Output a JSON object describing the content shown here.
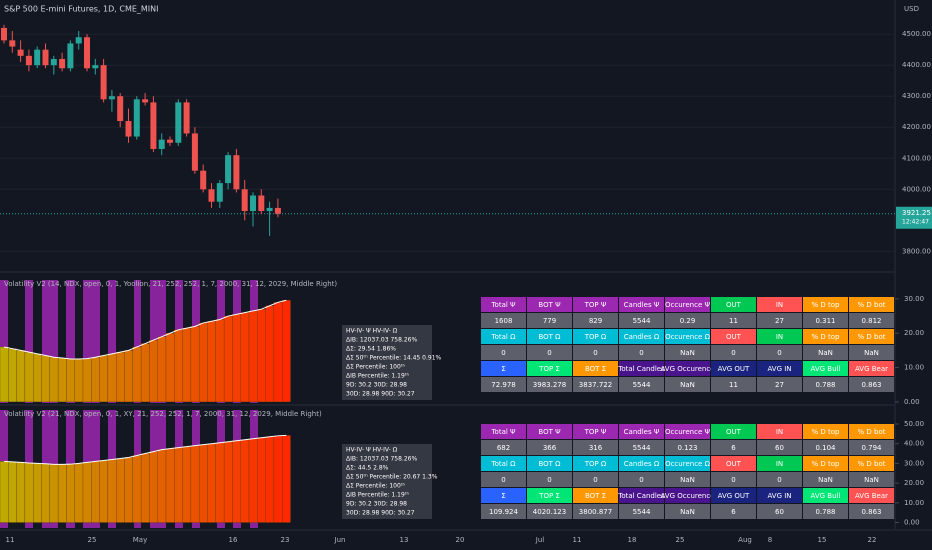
{
  "header": {
    "title": "S&P 500 E-mini Futures, 1D, CME_MINI",
    "currency": "USD"
  },
  "price_chart": {
    "type": "candlestick",
    "ylim": [
      3740,
      4610
    ],
    "yticks": [
      {
        "value": 4500,
        "label": "4500.00"
      },
      {
        "value": 4400,
        "label": "4400.00"
      },
      {
        "value": 4300,
        "label": "4300.00"
      },
      {
        "value": 4200,
        "label": "4200.00"
      },
      {
        "value": 4100,
        "label": "4100.00"
      },
      {
        "value": 4000,
        "label": "4000.00"
      },
      {
        "value": 3800,
        "label": "3800.00"
      }
    ],
    "last_price": {
      "value": 3921.25,
      "label": "3921.25",
      "time": "12:42:47"
    },
    "candles": [
      {
        "open": 4520,
        "high": 4530,
        "low": 4470,
        "close": 4480
      },
      {
        "open": 4480,
        "high": 4510,
        "low": 4440,
        "close": 4460
      },
      {
        "open": 4450,
        "high": 4480,
        "low": 4410,
        "close": 4430
      },
      {
        "open": 4430,
        "high": 4450,
        "low": 4380,
        "close": 4400
      },
      {
        "open": 4400,
        "high": 4460,
        "low": 4390,
        "close": 4450
      },
      {
        "open": 4450,
        "high": 4470,
        "low": 4390,
        "close": 4400
      },
      {
        "open": 4400,
        "high": 4430,
        "low": 4370,
        "close": 4420
      },
      {
        "open": 4420,
        "high": 4440,
        "low": 4380,
        "close": 4390
      },
      {
        "open": 4390,
        "high": 4480,
        "low": 4380,
        "close": 4470
      },
      {
        "open": 4470,
        "high": 4510,
        "low": 4450,
        "close": 4490
      },
      {
        "open": 4490,
        "high": 4500,
        "low": 4380,
        "close": 4390
      },
      {
        "open": 4390,
        "high": 4420,
        "low": 4370,
        "close": 4400
      },
      {
        "open": 4400,
        "high": 4420,
        "low": 4280,
        "close": 4290
      },
      {
        "open": 4290,
        "high": 4320,
        "low": 4250,
        "close": 4300
      },
      {
        "open": 4300,
        "high": 4310,
        "low": 4200,
        "close": 4220
      },
      {
        "open": 4220,
        "high": 4260,
        "low": 4150,
        "close": 4170
      },
      {
        "open": 4170,
        "high": 4300,
        "low": 4160,
        "close": 4290
      },
      {
        "open": 4290,
        "high": 4310,
        "low": 4270,
        "close": 4280
      },
      {
        "open": 4280,
        "high": 4300,
        "low": 4120,
        "close": 4130
      },
      {
        "open": 4130,
        "high": 4180,
        "low": 4110,
        "close": 4160
      },
      {
        "open": 4160,
        "high": 4170,
        "low": 4140,
        "close": 4150
      },
      {
        "open": 4150,
        "high": 4290,
        "low": 4140,
        "close": 4280
      },
      {
        "open": 4280,
        "high": 4290,
        "low": 4170,
        "close": 4180
      },
      {
        "open": 4180,
        "high": 4200,
        "low": 4050,
        "close": 4060
      },
      {
        "open": 4060,
        "high": 4080,
        "low": 3990,
        "close": 4000
      },
      {
        "open": 4000,
        "high": 4020,
        "low": 3940,
        "close": 3960
      },
      {
        "open": 3960,
        "high": 4030,
        "low": 3940,
        "close": 4020
      },
      {
        "open": 4020,
        "high": 4120,
        "low": 4000,
        "close": 4110
      },
      {
        "open": 4110,
        "high": 4130,
        "low": 3990,
        "close": 4000
      },
      {
        "open": 4000,
        "high": 4030,
        "low": 3900,
        "close": 3930
      },
      {
        "open": 3930,
        "high": 3990,
        "low": 3880,
        "close": 3980
      },
      {
        "open": 3980,
        "high": 4000,
        "low": 3920,
        "close": 3930
      },
      {
        "open": 3930,
        "high": 3960,
        "low": 3850,
        "close": 3940
      },
      {
        "open": 3940,
        "high": 3970,
        "low": 3910,
        "close": 3921.25
      }
    ]
  },
  "indicators": [
    {
      "title": "Volatility V2 (14, NDX, open, 0, 1, Yoolion, 21, 252, 252, 1, 7, 2000, 31, 12, 2029, Middle Right)",
      "ylim": [
        -0.9,
        35.5
      ],
      "yticks": [
        {
          "value": 30,
          "label": "30.00"
        },
        {
          "value": 20,
          "label": "20.00"
        },
        {
          "value": 10,
          "label": "10.00"
        },
        {
          "value": 0,
          "label": "0.00"
        }
      ],
      "values": [
        16,
        15.5,
        15,
        14.5,
        14,
        13.5,
        13,
        12.8,
        12.5,
        12.5,
        12.6,
        13,
        13.5,
        14,
        14.5,
        15,
        16,
        17,
        18,
        19,
        20,
        21,
        21.5,
        22,
        23,
        23.5,
        24,
        25,
        25.5,
        26,
        26.5,
        27,
        28,
        29,
        29.6
      ],
      "tooltip": [
        "HV-IV- Ψ  HV-IV- Ω",
        "ΔIB: 12037.03  758.26%",
        "ΔΣ: 29.54  1.86%",
        "ΔΣ 50ᵗʰ Percentile: 14.45  0.91%",
        "ΔΣ Percentile: 100ᵗʰ",
        "ΔIB Percentile: 1.19ᵗʰ",
        "9D: 30.2  30D: 28.98",
        "30D: 28.98  90D: 30.27"
      ],
      "table": [
        [
          "Total Ψ",
          "BOT Ψ",
          "TOP Ψ",
          "Candles Ψ",
          "Occurence Ψ",
          "OUT",
          "IN",
          "% D top",
          "% D bot"
        ],
        [
          "1608",
          "779",
          "829",
          "5544",
          "0.29",
          "11",
          "27",
          "0.311",
          "0.812"
        ],
        [
          "Total Ω",
          "BOT Ω",
          "TOP Ω",
          "Candles Ω",
          "Occurence Ω",
          "OUT",
          "IN",
          "% D top",
          "% D bot"
        ],
        [
          "0",
          "0",
          "0",
          "0",
          "NaN",
          "0",
          "0",
          "NaN",
          "NaN"
        ],
        [
          "Σ",
          "TOP Σ",
          "BOT Σ",
          "Total Candles",
          "AVG Occurence",
          "AVG OUT",
          "AVG IN",
          "AVG Bull",
          "AVG Bear"
        ],
        [
          "72.978",
          "3983.278",
          "3837.722",
          "5544",
          "NaN",
          "11",
          "27",
          "0.788",
          "0.863"
        ]
      ]
    },
    {
      "title": "Volatility V2 (21, NDX, open, 0, 1, XY, 21, 252, 252, 1, 7, 2000, 31, 12, 2029, Middle Right)",
      "ylim": [
        -3.8,
        57.1
      ],
      "yticks": [
        {
          "value": 50,
          "label": "50.00"
        },
        {
          "value": 40,
          "label": "40.00"
        },
        {
          "value": 30,
          "label": "30.00"
        },
        {
          "value": 20,
          "label": "20.00"
        },
        {
          "value": 10,
          "label": "10.00"
        },
        {
          "value": 0,
          "label": "0.00"
        }
      ],
      "values": [
        31,
        30.8,
        30.5,
        30.2,
        30,
        29.8,
        29.5,
        29.5,
        29.6,
        30,
        30.5,
        31,
        31.5,
        32,
        32.5,
        33,
        34,
        35,
        36,
        37,
        37.5,
        38,
        38.5,
        39,
        39.5,
        40,
        40.5,
        41,
        41.5,
        42,
        42.5,
        43,
        43.5,
        44,
        44.2
      ],
      "tooltip": [
        "HV-IV- Ψ  HV-IV- Ω",
        "ΔIB: 12037.03  758.26%",
        "ΔΣ: 44.5  2.8%",
        "ΔΣ 50ᵗʰ Percentile: 20.67  1.3%",
        "ΔΣ Percentile: 100ᵗʰ",
        "ΔIB Percentile: 1.19ᵗʰ",
        "9D: 30.2  30D: 28.98",
        "30D: 28.98  90D: 30.27"
      ],
      "table": [
        [
          "Total Ψ",
          "BOT Ψ",
          "TOP Ψ",
          "Candles Ψ",
          "Occurence Ψ",
          "OUT",
          "IN",
          "% D top",
          "% D bot"
        ],
        [
          "682",
          "366",
          "316",
          "5544",
          "0.123",
          "6",
          "60",
          "0.104",
          "0.794"
        ],
        [
          "Total Ω",
          "BOT Ω",
          "TOP Ω",
          "Candles Ω",
          "Occurence Ω",
          "OUT",
          "IN",
          "% D top",
          "% D bot"
        ],
        [
          "0",
          "0",
          "0",
          "0",
          "NaN",
          "0",
          "0",
          "NaN",
          "NaN"
        ],
        [
          "Σ",
          "TOP Σ",
          "BOT Σ",
          "Total Candles",
          "AVG Occurence",
          "AVG OUT",
          "AVG IN",
          "AVG Bull",
          "AVG Bear"
        ],
        [
          "109.924",
          "4020.123",
          "3800.877",
          "5544",
          "NaN",
          "6",
          "60",
          "0.788",
          "0.863"
        ]
      ]
    }
  ],
  "x_axis": {
    "labels": [
      "11",
      "25",
      "May",
      "16",
      "23",
      "Jun",
      "13",
      "20",
      "Jul",
      "11",
      "18",
      "25",
      "Aug",
      "8",
      "15",
      "22"
    ]
  }
}
